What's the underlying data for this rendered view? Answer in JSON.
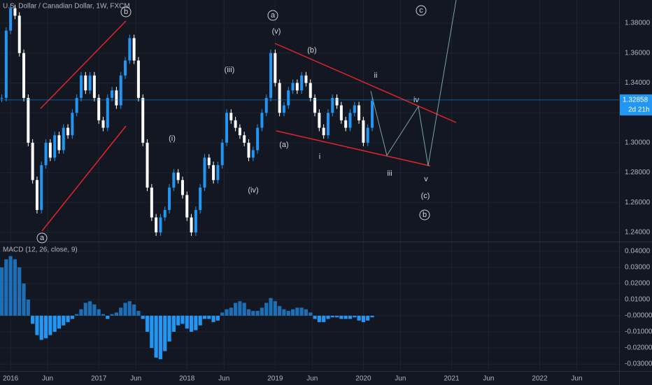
{
  "chart_data": [
    {
      "type": "candlestick",
      "title": "U.S. Dollar / Canadian Dollar, 1W, FXCM",
      "up_color": "#2196f3",
      "down_color": "#ffffff",
      "last_price": 1.32858,
      "countdown": "2d 21h",
      "xlim": [
        2015.88,
        2022.9
      ],
      "ylim": [
        1.2339,
        1.3955
      ],
      "yticks": [
        {
          "value": 1.24,
          "label": "1.24000"
        },
        {
          "value": 1.26,
          "label": "1.26000"
        },
        {
          "value": 1.28,
          "label": "1.28000"
        },
        {
          "value": 1.3,
          "label": "1.30000"
        },
        {
          "value": 1.32,
          "label": "1.32000"
        },
        {
          "value": 1.34,
          "label": "1.34000"
        },
        {
          "value": 1.36,
          "label": "1.36000"
        },
        {
          "value": 1.38,
          "label": "1.38000"
        }
      ],
      "xticks": [
        {
          "value": 2016,
          "label": "2016"
        },
        {
          "value": 2016.42,
          "label": "Jun"
        },
        {
          "value": 2017,
          "label": "2017"
        },
        {
          "value": 2017.42,
          "label": "Jun"
        },
        {
          "value": 2018,
          "label": "2018"
        },
        {
          "value": 2018.42,
          "label": "Jun"
        },
        {
          "value": 2019,
          "label": "2019"
        },
        {
          "value": 2019.42,
          "label": "Jun"
        },
        {
          "value": 2020,
          "label": "2020"
        },
        {
          "value": 2020.42,
          "label": "Jun"
        },
        {
          "value": 2021,
          "label": "2021"
        },
        {
          "value": 2021.42,
          "label": "Jun"
        },
        {
          "value": 2022,
          "label": "2022"
        },
        {
          "value": 2022.42,
          "label": "Jun"
        }
      ],
      "x": [
        2015.9,
        2015.95,
        2016,
        2016.05,
        2016.1,
        2016.15,
        2016.2,
        2016.25,
        2016.3,
        2016.35,
        2016.4,
        2016.45,
        2016.5,
        2016.55,
        2016.6,
        2016.65,
        2016.7,
        2016.75,
        2016.8,
        2016.85,
        2016.9,
        2016.95,
        2017,
        2017.05,
        2017.1,
        2017.15,
        2017.2,
        2017.25,
        2017.3,
        2017.35,
        2017.4,
        2017.45,
        2017.5,
        2017.55,
        2017.6,
        2017.65,
        2017.7,
        2017.75,
        2017.8,
        2017.85,
        2017.9,
        2017.95,
        2018,
        2018.05,
        2018.1,
        2018.15,
        2018.2,
        2018.25,
        2018.3,
        2018.35,
        2018.4,
        2018.45,
        2018.5,
        2018.55,
        2018.6,
        2018.65,
        2018.7,
        2018.75,
        2018.8,
        2018.85,
        2018.9,
        2018.95,
        2019,
        2019.05,
        2019.1,
        2019.15,
        2019.2,
        2019.25,
        2019.3,
        2019.35,
        2019.4,
        2019.45,
        2019.5,
        2019.55,
        2019.6,
        2019.65,
        2019.7,
        2019.75,
        2019.8,
        2019.85,
        2019.9,
        2019.95,
        2020,
        2020.05,
        2020.1
      ],
      "series": [
        {
          "name": "Close",
          "values": [
            1.33,
            1.375,
            1.39,
            1.385,
            1.36,
            1.33,
            1.3,
            1.275,
            1.255,
            1.285,
            1.3,
            1.29,
            1.305,
            1.295,
            1.31,
            1.305,
            1.32,
            1.33,
            1.345,
            1.335,
            1.345,
            1.33,
            1.315,
            1.31,
            1.33,
            1.335,
            1.325,
            1.345,
            1.355,
            1.37,
            1.355,
            1.33,
            1.3,
            1.27,
            1.25,
            1.24,
            1.25,
            1.255,
            1.27,
            1.28,
            1.275,
            1.265,
            1.25,
            1.24,
            1.255,
            1.27,
            1.29,
            1.285,
            1.275,
            1.285,
            1.3,
            1.32,
            1.315,
            1.31,
            1.305,
            1.3,
            1.29,
            1.295,
            1.31,
            1.32,
            1.33,
            1.36,
            1.34,
            1.32,
            1.325,
            1.335,
            1.34,
            1.335,
            1.345,
            1.34,
            1.33,
            1.32,
            1.31,
            1.305,
            1.32,
            1.33,
            1.325,
            1.315,
            1.31,
            1.32,
            1.325,
            1.315,
            1.3,
            1.31,
            1.328
          ]
        }
      ],
      "annotations": [
        "b",
        "a",
        "a",
        "(v)",
        "(b)",
        "c",
        "ii",
        "(iii)",
        "iv",
        "(i)",
        "(a)",
        "i",
        "iii",
        "(iv)",
        "v",
        "(c)",
        "b"
      ]
    },
    {
      "type": "bar",
      "title": "MACD (12, 26, close, 9)",
      "color": "#2196f3",
      "xlim": [
        2015.88,
        2022.9
      ],
      "ylim": [
        -0.0343,
        0.0456
      ],
      "yticks": [
        {
          "value": -0.03,
          "label": "-0.03000"
        },
        {
          "value": -0.02,
          "label": "-0.02000"
        },
        {
          "value": -0.01,
          "label": "-0.01000"
        },
        {
          "value": 0,
          "label": "-0.00000"
        },
        {
          "value": 0.01,
          "label": "0.01000"
        },
        {
          "value": 0.02,
          "label": "0.02000"
        },
        {
          "value": 0.03,
          "label": "0.03000"
        },
        {
          "value": 0.04,
          "label": "0.04000"
        }
      ],
      "values": [
        0.03,
        0.035,
        0.037,
        0.035,
        0.03,
        0.02,
        0.01,
        -0.005,
        -0.012,
        -0.015,
        -0.014,
        -0.012,
        -0.01,
        -0.008,
        -0.006,
        -0.004,
        -0.002,
        0.001,
        0.004,
        0.008,
        0.009,
        0.007,
        0.004,
        0.001,
        -0.002,
        0.001,
        0.002,
        0.005,
        0.008,
        0.009,
        0.007,
        0.003,
        -0.002,
        -0.01,
        -0.02,
        -0.026,
        -0.027,
        -0.022,
        -0.016,
        -0.01,
        -0.006,
        -0.005,
        -0.008,
        -0.01,
        -0.009,
        -0.006,
        -0.002,
        -0.002,
        -0.004,
        -0.003,
        0.002,
        0.004,
        0.005,
        0.008,
        0.009,
        0.008,
        0.004,
        0.003,
        0.003,
        0.005,
        0.008,
        0.011,
        0.009,
        0.006,
        0.004,
        0.003,
        0.004,
        0.005,
        0.005,
        0.004,
        0.002,
        -0.002,
        -0.004,
        -0.004,
        -0.002,
        -0.001,
        -0.001,
        -0.002,
        -0.002,
        -0.002,
        -0.001,
        -0.003,
        -0.004,
        -0.003,
        -0.001
      ]
    }
  ]
}
